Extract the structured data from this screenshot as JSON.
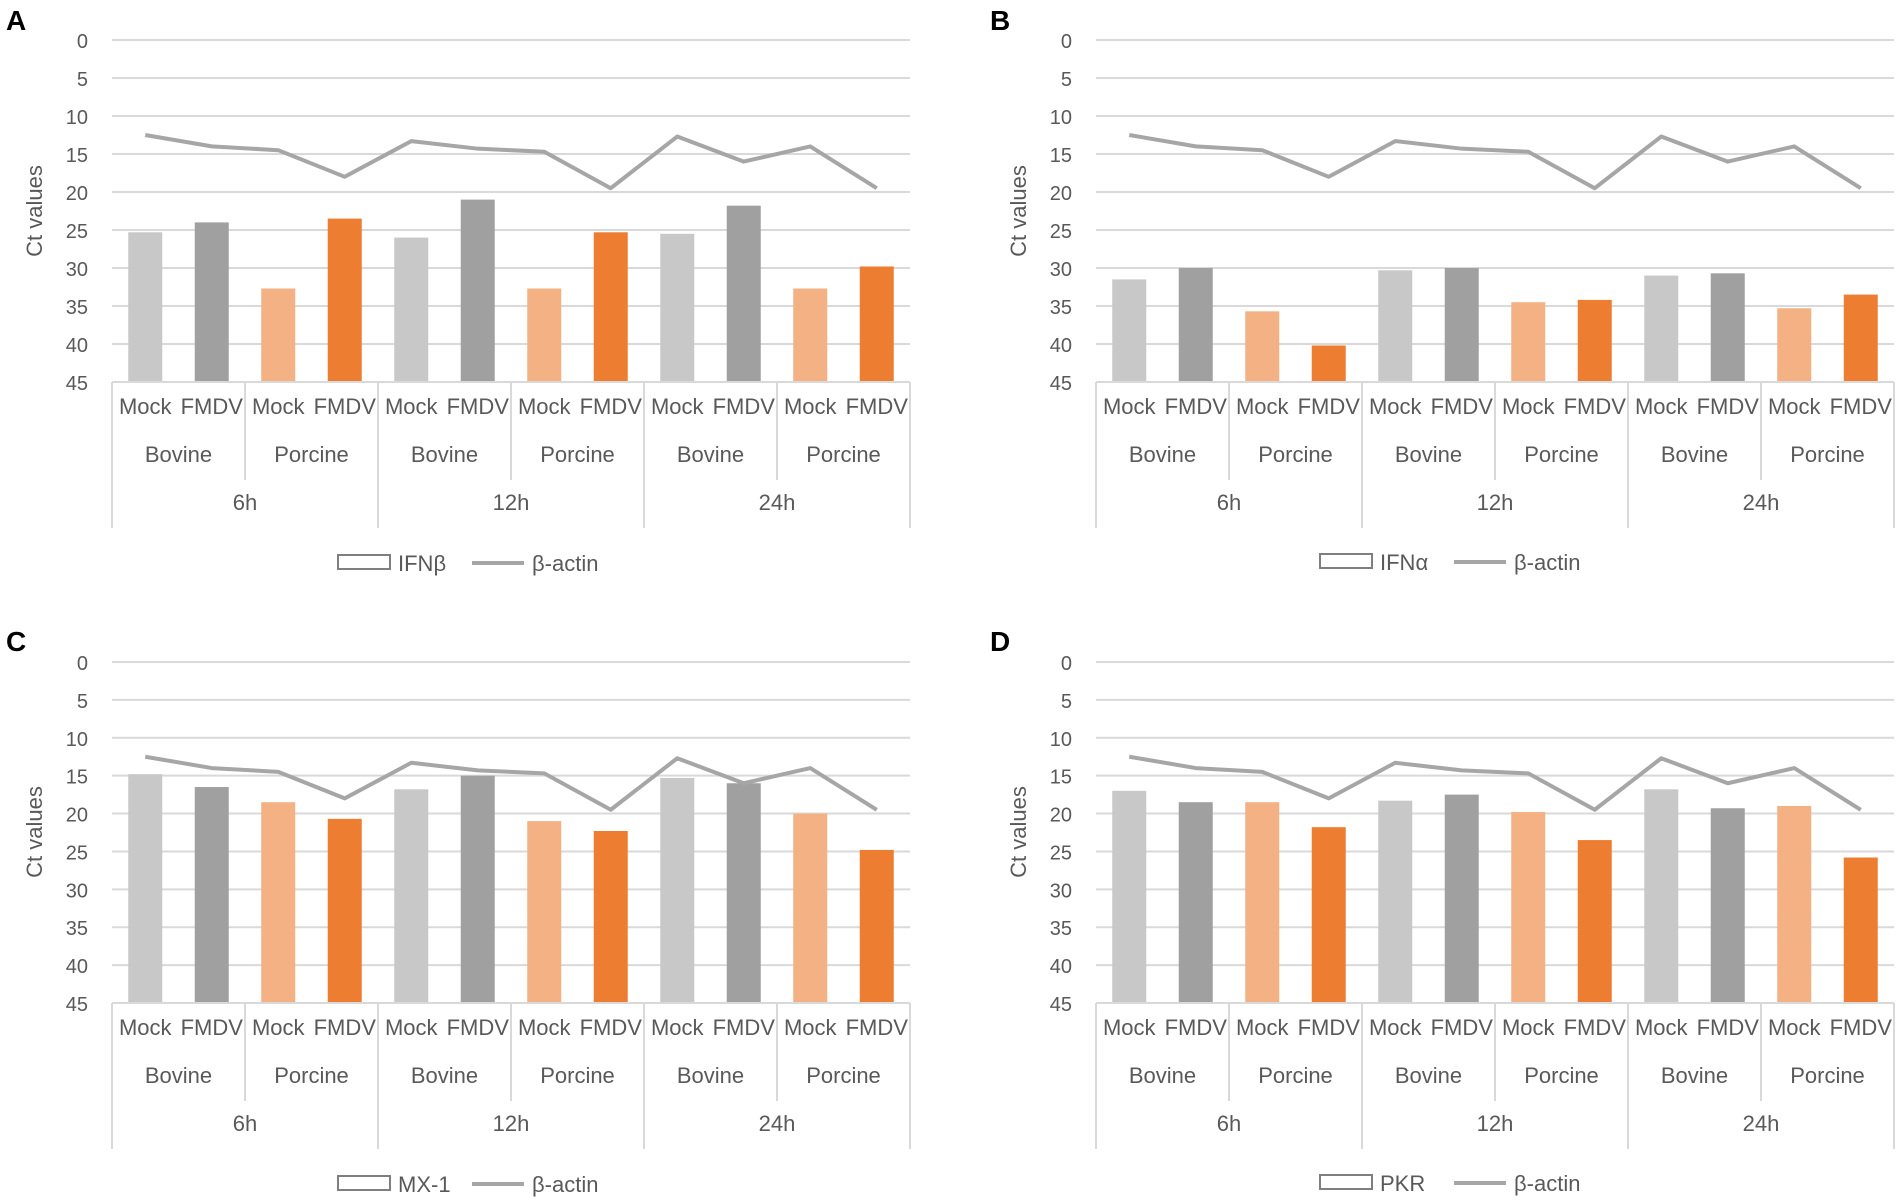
{
  "chart_data": [
    {
      "panel": "A",
      "type": "bar",
      "ylabel": "Ct values",
      "ylim": [
        0,
        45
      ],
      "y_inverted": true,
      "yticks": [
        0,
        5,
        10,
        15,
        20,
        25,
        30,
        35,
        40,
        45
      ],
      "groups": [
        "6h",
        "12h",
        "24h"
      ],
      "species": [
        "Bovine",
        "Porcine"
      ],
      "conditions": [
        "Mock",
        "FMDV"
      ],
      "categories": [
        "Mock",
        "FMDV",
        "Mock",
        "FMDV",
        "Mock",
        "FMDV",
        "Mock",
        "FMDV",
        "Mock",
        "FMDV",
        "Mock",
        "FMDV"
      ],
      "series": [
        {
          "name": "IFNβ",
          "kind": "bar",
          "values": [
            25.3,
            24.0,
            32.7,
            23.5,
            26.0,
            21.0,
            32.7,
            25.3,
            25.5,
            21.8,
            32.7,
            29.8
          ]
        },
        {
          "name": "β-actin",
          "kind": "line",
          "values": [
            12.5,
            14.0,
            14.5,
            18.0,
            13.3,
            14.3,
            14.7,
            19.5,
            12.7,
            16.0,
            14.0,
            19.5
          ]
        }
      ],
      "legend": [
        "IFNβ",
        "β-actin"
      ]
    },
    {
      "panel": "B",
      "type": "bar",
      "ylabel": "Ct values",
      "ylim": [
        0,
        45
      ],
      "y_inverted": true,
      "yticks": [
        0,
        5,
        10,
        15,
        20,
        25,
        30,
        35,
        40,
        45
      ],
      "groups": [
        "6h",
        "12h",
        "24h"
      ],
      "species": [
        "Bovine",
        "Porcine"
      ],
      "conditions": [
        "Mock",
        "FMDV"
      ],
      "categories": [
        "Mock",
        "FMDV",
        "Mock",
        "FMDV",
        "Mock",
        "FMDV",
        "Mock",
        "FMDV",
        "Mock",
        "FMDV",
        "Mock",
        "FMDV"
      ],
      "series": [
        {
          "name": "IFNα",
          "kind": "bar",
          "values": [
            31.5,
            30.0,
            35.7,
            40.2,
            30.3,
            30.0,
            34.5,
            34.2,
            31.0,
            30.7,
            35.3,
            33.5
          ]
        },
        {
          "name": "β-actin",
          "kind": "line",
          "values": [
            12.5,
            14.0,
            14.5,
            18.0,
            13.3,
            14.3,
            14.7,
            19.5,
            12.7,
            16.0,
            14.0,
            19.5
          ]
        }
      ],
      "legend": [
        "IFNα",
        "β-actin"
      ]
    },
    {
      "panel": "C",
      "type": "bar",
      "ylabel": "Ct values",
      "ylim": [
        0,
        45
      ],
      "y_inverted": true,
      "yticks": [
        0,
        5,
        10,
        15,
        20,
        25,
        30,
        35,
        40,
        45
      ],
      "groups": [
        "6h",
        "12h",
        "24h"
      ],
      "species": [
        "Bovine",
        "Porcine"
      ],
      "conditions": [
        "Mock",
        "FMDV"
      ],
      "categories": [
        "Mock",
        "FMDV",
        "Mock",
        "FMDV",
        "Mock",
        "FMDV",
        "Mock",
        "FMDV",
        "Mock",
        "FMDV",
        "Mock",
        "FMDV"
      ],
      "series": [
        {
          "name": "MX-1",
          "kind": "bar",
          "values": [
            14.8,
            16.5,
            18.5,
            20.7,
            16.8,
            15.0,
            21.0,
            22.3,
            15.3,
            16.0,
            20.0,
            24.8
          ]
        },
        {
          "name": "β-actin",
          "kind": "line",
          "values": [
            12.5,
            14.0,
            14.5,
            18.0,
            13.3,
            14.3,
            14.7,
            19.5,
            12.7,
            16.0,
            14.0,
            19.5
          ]
        }
      ],
      "legend": [
        "MX-1",
        "β-actin"
      ]
    },
    {
      "panel": "D",
      "type": "bar",
      "ylabel": "Ct values",
      "ylim": [
        0,
        45
      ],
      "y_inverted": true,
      "yticks": [
        0,
        5,
        10,
        15,
        20,
        25,
        30,
        35,
        40,
        45
      ],
      "groups": [
        "6h",
        "12h",
        "24h"
      ],
      "species": [
        "Bovine",
        "Porcine"
      ],
      "conditions": [
        "Mock",
        "FMDV"
      ],
      "categories": [
        "Mock",
        "FMDV",
        "Mock",
        "FMDV",
        "Mock",
        "FMDV",
        "Mock",
        "FMDV",
        "Mock",
        "FMDV",
        "Mock",
        "FMDV"
      ],
      "series": [
        {
          "name": "PKR",
          "kind": "bar",
          "values": [
            17.0,
            18.5,
            18.5,
            21.8,
            18.3,
            17.5,
            19.8,
            23.5,
            16.8,
            19.3,
            19.0,
            25.8
          ]
        },
        {
          "name": "β-actin",
          "kind": "line",
          "values": [
            12.5,
            14.0,
            14.5,
            18.0,
            13.3,
            14.3,
            14.7,
            19.5,
            12.7,
            16.0,
            14.0,
            19.5
          ]
        }
      ],
      "legend": [
        "PKR",
        "β-actin"
      ]
    }
  ],
  "colors": {
    "bovine_mock": "#c8c8c8",
    "bovine_fmdv": "#a0a0a0",
    "porcine_mock": "#f4b183",
    "porcine_fmdv": "#ed7d31",
    "line": "#a6a6a6",
    "grid": "#d9d9d9",
    "axis_text": "#595959",
    "panel_label": "#000000"
  }
}
